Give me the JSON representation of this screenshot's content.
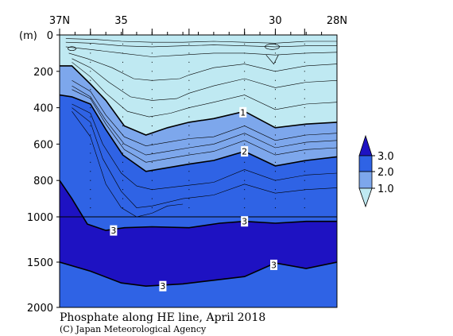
{
  "title": "Phosphate along HE line, April 2018",
  "credit": "(C) Japan Meteorological Agency",
  "chart_data": {
    "type": "contour",
    "xaxis": {
      "direction": "north-to-south",
      "range": [
        37,
        28
      ],
      "ticklabels": [
        {
          "lat": 37,
          "label": "37N"
        },
        {
          "lat": 35,
          "label": "35"
        },
        {
          "lat": 30,
          "label": "30"
        },
        {
          "lat": 28,
          "label": "28N"
        }
      ],
      "minor_ticks_deg": [
        36.5,
        36,
        35.5,
        35,
        34.5,
        34,
        33.5,
        33,
        32.5,
        32,
        31.5,
        31,
        30.5,
        30,
        29.5,
        29,
        28.5
      ],
      "station_lats": [
        37,
        36,
        34.95,
        34,
        32.8,
        31,
        30,
        29.05
      ]
    },
    "yaxis": {
      "unit": "(m)",
      "upper_range": [
        0,
        1000
      ],
      "lower_range": [
        1000,
        2000
      ],
      "ticks": [
        0,
        200,
        400,
        600,
        800,
        1000,
        1500,
        2000
      ],
      "ticklabels": [
        "0",
        "200",
        "400",
        "600",
        "800",
        "1000",
        "1500",
        "2000"
      ]
    },
    "colorbar": {
      "labels": [
        "3.0",
        "2.0",
        "1.0"
      ],
      "levels": [
        1.0,
        2.0,
        3.0
      ],
      "colors": {
        "lt1": "#bfe9f2",
        "1to2": "#7da7ec",
        "2to3": "#2f63e5",
        "gt3": "#1e12c2"
      }
    },
    "contour_labels": [
      "1",
      "2",
      "3",
      "3",
      "3",
      "3",
      "3"
    ],
    "isolines": {
      "c1": [
        [
          37,
          170
        ],
        [
          36.6,
          170
        ],
        [
          36,
          270
        ],
        [
          35.5,
          360
        ],
        [
          34.9,
          500
        ],
        [
          34.2,
          550
        ],
        [
          33.5,
          510
        ],
        [
          32.8,
          480
        ],
        [
          32,
          460
        ],
        [
          31,
          420
        ],
        [
          30,
          510
        ],
        [
          29,
          490
        ],
        [
          28,
          480
        ]
      ],
      "c2": [
        [
          37,
          330
        ],
        [
          36.6,
          340
        ],
        [
          36,
          380
        ],
        [
          35.5,
          520
        ],
        [
          34.95,
          660
        ],
        [
          34.2,
          750
        ],
        [
          33.5,
          730
        ],
        [
          32.8,
          710
        ],
        [
          32,
          690
        ],
        [
          31,
          640
        ],
        [
          30,
          720
        ],
        [
          29,
          690
        ],
        [
          28,
          670
        ]
      ],
      "c3a": [
        [
          37,
          800
        ],
        [
          36.6,
          900
        ],
        [
          36.1,
          1080
        ],
        [
          35.5,
          1150
        ],
        [
          34.9,
          1120
        ],
        [
          34,
          1110
        ],
        [
          32.8,
          1120
        ],
        [
          31.8,
          1070
        ],
        [
          31,
          1050
        ],
        [
          30,
          1070
        ],
        [
          29,
          1050
        ],
        [
          28,
          1050
        ]
      ],
      "c3b": [
        [
          37,
          1500
        ],
        [
          36,
          1600
        ],
        [
          35,
          1730
        ],
        [
          34.2,
          1765
        ],
        [
          33,
          1740
        ],
        [
          32,
          1700
        ],
        [
          31,
          1660
        ],
        [
          30,
          1510
        ],
        [
          29,
          1570
        ],
        [
          28,
          1500
        ]
      ]
    },
    "thin_isolines": [
      [
        [
          36.8,
          20
        ],
        [
          35.8,
          25
        ],
        [
          35,
          35
        ],
        [
          34,
          40
        ],
        [
          33,
          40
        ],
        [
          32,
          35
        ],
        [
          31,
          40
        ],
        [
          30,
          45
        ],
        [
          29,
          35
        ],
        [
          28,
          35
        ]
      ],
      [
        [
          36.8,
          40
        ],
        [
          36,
          45
        ],
        [
          35,
          60
        ],
        [
          34,
          65
        ],
        [
          33,
          60
        ],
        [
          32,
          55
        ],
        [
          31,
          60
        ],
        [
          30,
          65
        ],
        [
          29,
          60
        ],
        [
          28,
          60
        ]
      ],
      [
        [
          36.8,
          65
        ],
        [
          36,
          80
        ],
        [
          35,
          100
        ],
        [
          34,
          120
        ],
        [
          33,
          110
        ],
        [
          32,
          100
        ],
        [
          31,
          100
        ],
        [
          30,
          110
        ],
        [
          29,
          100
        ],
        [
          28,
          95
        ]
      ],
      [
        [
          36.7,
          100
        ],
        [
          36.1,
          130
        ],
        [
          35.3,
          180
        ],
        [
          34.6,
          240
        ],
        [
          34,
          250
        ],
        [
          33.1,
          240
        ],
        [
          32.8,
          220
        ],
        [
          32,
          180
        ],
        [
          31,
          160
        ],
        [
          30,
          200
        ],
        [
          29,
          170
        ],
        [
          28,
          160
        ]
      ],
      [
        [
          36.6,
          130
        ],
        [
          36,
          180
        ],
        [
          35.4,
          260
        ],
        [
          34.7,
          340
        ],
        [
          34,
          360
        ],
        [
          33.2,
          350
        ],
        [
          32.8,
          320
        ],
        [
          32,
          280
        ],
        [
          31,
          240
        ],
        [
          30,
          290
        ],
        [
          29,
          260
        ],
        [
          28,
          250
        ]
      ],
      [
        [
          36.6,
          150
        ],
        [
          36,
          230
        ],
        [
          35.5,
          320
        ],
        [
          34.8,
          420
        ],
        [
          34.1,
          450
        ],
        [
          33.4,
          430
        ],
        [
          32.8,
          400
        ],
        [
          32,
          370
        ],
        [
          31,
          330
        ],
        [
          30,
          410
        ],
        [
          29,
          380
        ],
        [
          28,
          370
        ]
      ],
      [
        [
          36.6,
          250
        ],
        [
          36,
          310
        ],
        [
          35.5,
          440
        ],
        [
          34.9,
          560
        ],
        [
          34.2,
          610
        ],
        [
          33.5,
          590
        ],
        [
          32.8,
          570
        ],
        [
          32,
          560
        ],
        [
          31,
          500
        ],
        [
          30,
          580
        ],
        [
          29,
          550
        ],
        [
          28,
          540
        ]
      ],
      [
        [
          36.6,
          280
        ],
        [
          36,
          340
        ],
        [
          35.5,
          470
        ],
        [
          34.9,
          600
        ],
        [
          34.2,
          660
        ],
        [
          33.5,
          640
        ],
        [
          32.8,
          620
        ],
        [
          32,
          600
        ],
        [
          31,
          540
        ],
        [
          30,
          620
        ],
        [
          29,
          590
        ],
        [
          28,
          580
        ]
      ],
      [
        [
          36.6,
          300
        ],
        [
          36,
          350
        ],
        [
          35.5,
          490
        ],
        [
          34.9,
          630
        ],
        [
          34.2,
          700
        ],
        [
          33.5,
          680
        ],
        [
          32.8,
          660
        ],
        [
          32,
          640
        ],
        [
          31,
          580
        ],
        [
          30,
          660
        ],
        [
          29,
          630
        ],
        [
          28,
          620
        ]
      ],
      [
        [
          36.6,
          380
        ],
        [
          36,
          430
        ],
        [
          35.6,
          600
        ],
        [
          35,
          760
        ],
        [
          34.5,
          830
        ],
        [
          34,
          850
        ],
        [
          33,
          830
        ],
        [
          32,
          810
        ],
        [
          31,
          740
        ],
        [
          30,
          800
        ],
        [
          29,
          770
        ],
        [
          28,
          760
        ]
      ],
      [
        [
          36.6,
          400
        ],
        [
          36,
          480
        ],
        [
          35.6,
          680
        ],
        [
          35,
          860
        ],
        [
          34.5,
          950
        ],
        [
          34,
          940
        ],
        [
          33,
          900
        ],
        [
          32,
          880
        ],
        [
          31,
          820
        ],
        [
          30,
          870
        ],
        [
          29,
          850
        ],
        [
          28,
          840
        ]
      ],
      [
        [
          36.6,
          420
        ],
        [
          36,
          560
        ],
        [
          35.5,
          820
        ],
        [
          35,
          950
        ],
        [
          34.5,
          1000
        ],
        [
          34,
          980
        ],
        [
          33.5,
          940
        ],
        [
          33,
          930
        ]
      ]
    ],
    "cells_upper": [
      [
        [
          34.5,
          130
        ],
        [
          32.5,
          90
        ],
        [
          30.5,
          40
        ],
        [
          28.7,
          80
        ]
      ],
      [
        [
          34.5,
          330
        ],
        [
          33.5,
          420
        ],
        [
          31,
          300
        ],
        [
          29,
          420
        ]
      ],
      [
        [
          34.3,
          900
        ],
        [
          32.5,
          920
        ],
        [
          30.5,
          950
        ],
        [
          29,
          940
        ]
      ]
    ]
  }
}
